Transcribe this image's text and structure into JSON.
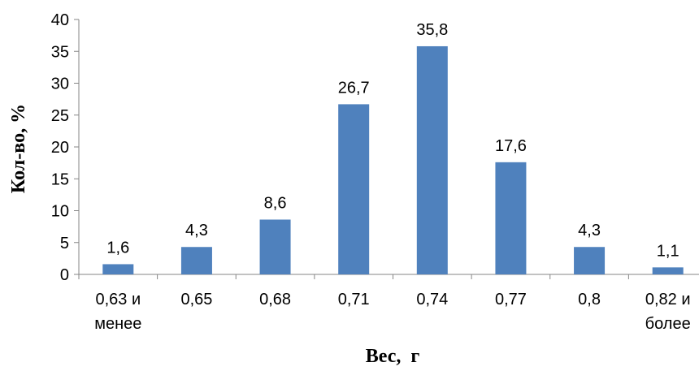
{
  "chart_data": {
    "type": "bar",
    "categories": [
      [
        "0,63 и",
        "менее"
      ],
      [
        "0,65"
      ],
      [
        "0,68"
      ],
      [
        "0,71"
      ],
      [
        "0,74"
      ],
      [
        "0,77"
      ],
      [
        "0,8"
      ],
      [
        "0,82 и",
        "более"
      ]
    ],
    "values": [
      1.6,
      4.3,
      8.6,
      26.7,
      35.8,
      17.6,
      4.3,
      1.1
    ],
    "data_labels": [
      "1,6",
      "4,3",
      "8,6",
      "26,7",
      "35,8",
      "17,6",
      "4,3",
      "1,1"
    ],
    "xlabel": "Вес,  г",
    "ylabel": "Кол-во, %",
    "ylim": [
      0,
      40
    ],
    "yticks": [
      0,
      5,
      10,
      15,
      20,
      25,
      30,
      35,
      40
    ],
    "bar_color": "#4f81bd",
    "grid": false,
    "legend": "none"
  }
}
